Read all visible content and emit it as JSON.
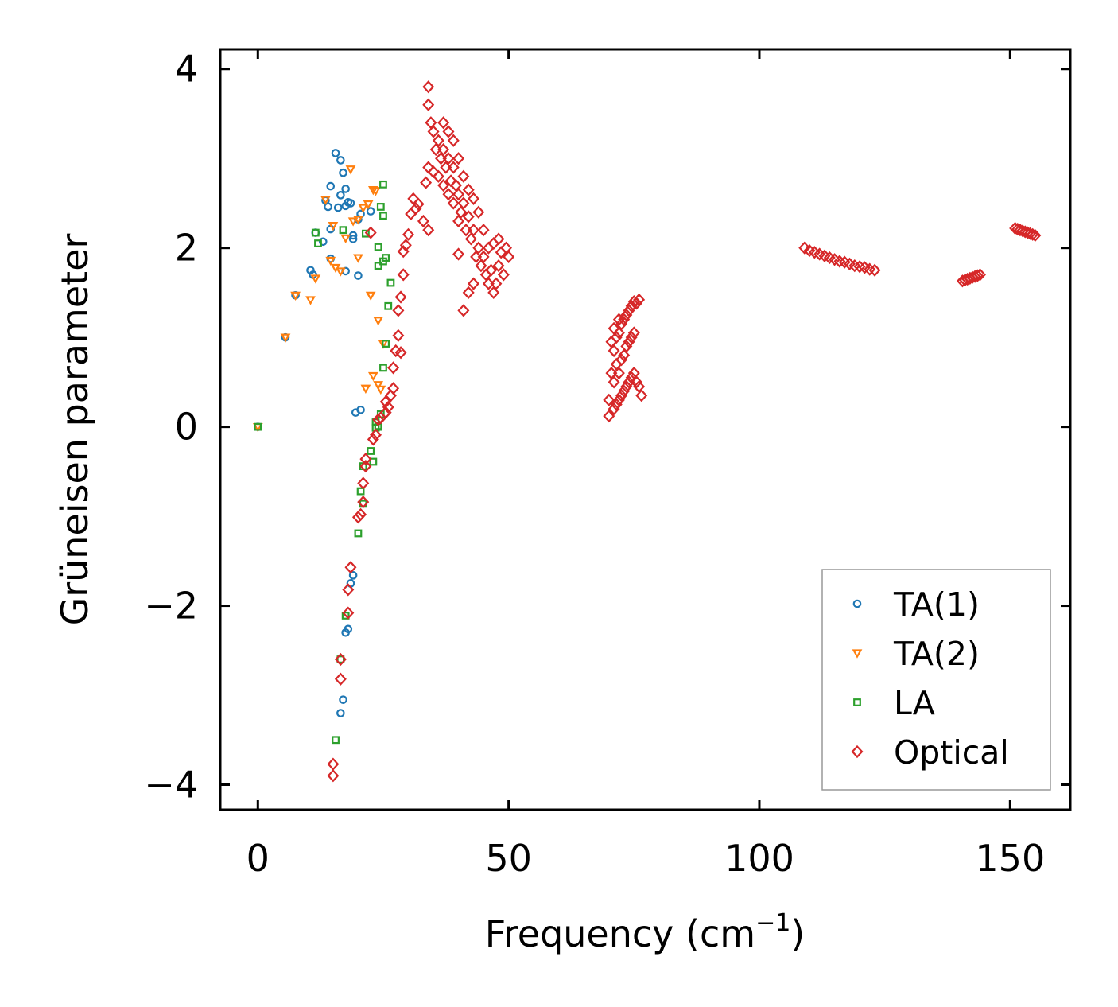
{
  "chart_data": {
    "type": "scatter",
    "title": "",
    "xlabel": "Frequency (cm",
    "xlabel_sup": "−1",
    "xlabel_suffix": ")",
    "ylabel": "Grüneisen parameter",
    "xlim": [
      -7.5,
      162
    ],
    "ylim": [
      -4.28,
      4.22
    ],
    "xticks": [
      0,
      50,
      100,
      150
    ],
    "xtick_labels": [
      "0",
      "50",
      "100",
      "150"
    ],
    "yticks": [
      -4,
      -2,
      0,
      2,
      4
    ],
    "ytick_labels": [
      "−4",
      "−2",
      "0",
      "2",
      "4"
    ],
    "grid": false,
    "legend_position": "bottom-right",
    "series": [
      {
        "name": "TA(1)",
        "marker": "circle",
        "color": "#1f77b4",
        "points": [
          [
            0,
            0
          ],
          [
            5.5,
            1.0
          ],
          [
            7.5,
            1.47
          ],
          [
            10.5,
            1.75
          ],
          [
            11,
            1.7
          ],
          [
            11.5,
            2.17
          ],
          [
            13,
            2.07
          ],
          [
            13.5,
            2.53
          ],
          [
            14,
            2.46
          ],
          [
            14.5,
            1.88
          ],
          [
            14.5,
            2.69
          ],
          [
            14.5,
            2.21
          ],
          [
            15.5,
            3.06
          ],
          [
            16,
            2.45
          ],
          [
            16.5,
            2.98
          ],
          [
            16.5,
            2.59
          ],
          [
            17,
            2.84
          ],
          [
            17.5,
            1.74
          ],
          [
            17.5,
            2.47
          ],
          [
            17.5,
            2.66
          ],
          [
            18,
            2.51
          ],
          [
            18.5,
            2.5
          ],
          [
            19,
            2.14
          ],
          [
            19,
            2.1
          ],
          [
            16.5,
            -3.2
          ],
          [
            17,
            -3.05
          ],
          [
            17.5,
            -2.3
          ],
          [
            18,
            -2.26
          ],
          [
            18.5,
            -1.75
          ],
          [
            19,
            -1.66
          ],
          [
            19.5,
            0.16
          ],
          [
            20.5,
            0.19
          ],
          [
            20,
            1.69
          ],
          [
            20,
            2.32
          ],
          [
            20.5,
            2.38
          ],
          [
            22.5,
            2.41
          ]
        ]
      },
      {
        "name": "TA(2)",
        "marker": "triangle",
        "color": "#ff7f0e",
        "points": [
          [
            0,
            0
          ],
          [
            5.5,
            1.0
          ],
          [
            7.5,
            1.47
          ],
          [
            10.5,
            1.42
          ],
          [
            11.5,
            1.66
          ],
          [
            13.5,
            2.54
          ],
          [
            14.5,
            1.86
          ],
          [
            15,
            2.25
          ],
          [
            15.5,
            1.78
          ],
          [
            16.5,
            1.74
          ],
          [
            17.5,
            2.11
          ],
          [
            18.5,
            2.88
          ],
          [
            19,
            2.3
          ],
          [
            20,
            1.89
          ],
          [
            21,
            2.45
          ],
          [
            21.5,
            0.43
          ],
          [
            22,
            2.49
          ],
          [
            22.5,
            1.47
          ],
          [
            23,
            0.57
          ],
          [
            23,
            2.65
          ],
          [
            23.5,
            2.64
          ],
          [
            24,
            1.19
          ],
          [
            24,
            0.47
          ],
          [
            24.5,
            0.42
          ],
          [
            25,
            0.93
          ],
          [
            20,
            2.32
          ]
        ]
      },
      {
        "name": "LA",
        "marker": "square",
        "color": "#2ca02c",
        "points": [
          [
            0,
            0
          ],
          [
            11.5,
            2.17
          ],
          [
            12,
            2.05
          ],
          [
            15.5,
            -3.5
          ],
          [
            16.5,
            -2.6
          ],
          [
            17,
            2.2
          ],
          [
            17.5,
            -2.11
          ],
          [
            20,
            -1.19
          ],
          [
            20.5,
            -0.72
          ],
          [
            21,
            -0.86
          ],
          [
            21,
            -0.44
          ],
          [
            21.5,
            2.16
          ],
          [
            22.5,
            -0.27
          ],
          [
            23,
            -0.39
          ],
          [
            23.5,
            -0.01
          ],
          [
            23.5,
            0.05
          ],
          [
            24,
            0.0
          ],
          [
            24,
            0.01
          ],
          [
            24,
            1.8
          ],
          [
            24,
            2.01
          ],
          [
            24.5,
            0.14
          ],
          [
            24.5,
            2.46
          ],
          [
            25,
            2.71
          ],
          [
            25,
            0.66
          ],
          [
            25,
            2.36
          ],
          [
            25.5,
            0.93
          ],
          [
            25.5,
            1.89
          ],
          [
            26,
            1.35
          ],
          [
            26.5,
            1.61
          ],
          [
            25,
            1.85
          ]
        ]
      },
      {
        "name": "Optical",
        "marker": "diamond",
        "color": "#d62728",
        "points": [
          [
            15,
            -3.9
          ],
          [
            15,
            -3.77
          ],
          [
            16.5,
            -2.82
          ],
          [
            16.5,
            -2.6
          ],
          [
            18,
            -2.08
          ],
          [
            18,
            -1.82
          ],
          [
            18.5,
            -1.57
          ],
          [
            20,
            -1.01
          ],
          [
            20.5,
            -0.98
          ],
          [
            21,
            -0.84
          ],
          [
            21,
            -0.63
          ],
          [
            21.5,
            -0.44
          ],
          [
            21.5,
            -0.36
          ],
          [
            22.5,
            2.17
          ],
          [
            23,
            -0.14
          ],
          [
            23.5,
            -0.09
          ],
          [
            24,
            0.08
          ],
          [
            24.5,
            0.1
          ],
          [
            25.5,
            0.16
          ],
          [
            25.5,
            0.28
          ],
          [
            26,
            0.22
          ],
          [
            26.5,
            0.35
          ],
          [
            27,
            0.43
          ],
          [
            27,
            0.66
          ],
          [
            27.5,
            0.85
          ],
          [
            28,
            1.02
          ],
          [
            28.5,
            0.83
          ],
          [
            28,
            1.3
          ],
          [
            28.5,
            1.45
          ],
          [
            29,
            1.7
          ],
          [
            29,
            1.96
          ],
          [
            29.5,
            2.03
          ],
          [
            30,
            2.15
          ],
          [
            30.5,
            2.38
          ],
          [
            31,
            2.55
          ],
          [
            31.5,
            2.44
          ],
          [
            32,
            2.49
          ],
          [
            33,
            2.3
          ],
          [
            34,
            2.2
          ],
          [
            33.5,
            2.73
          ],
          [
            34,
            3.8
          ],
          [
            34,
            3.6
          ],
          [
            34.5,
            3.4
          ],
          [
            35,
            3.3
          ],
          [
            35.5,
            3.1
          ],
          [
            34,
            2.9
          ],
          [
            35,
            2.85
          ],
          [
            36,
            2.8
          ],
          [
            36,
            3.2
          ],
          [
            36.5,
            3.0
          ],
          [
            37,
            3.4
          ],
          [
            37,
            3.1
          ],
          [
            37.5,
            2.9
          ],
          [
            37,
            2.7
          ],
          [
            38,
            3.3
          ],
          [
            38,
            3.0
          ],
          [
            38.5,
            2.75
          ],
          [
            38,
            2.6
          ],
          [
            39,
            3.2
          ],
          [
            39,
            2.9
          ],
          [
            39.5,
            2.7
          ],
          [
            39,
            2.5
          ],
          [
            40,
            3.0
          ],
          [
            40,
            2.6
          ],
          [
            40.5,
            2.4
          ],
          [
            40,
            2.3
          ],
          [
            41,
            2.8
          ],
          [
            41,
            2.5
          ],
          [
            41.5,
            2.2
          ],
          [
            42,
            2.65
          ],
          [
            42,
            2.35
          ],
          [
            42.5,
            2.1
          ],
          [
            43,
            2.55
          ],
          [
            43,
            2.2
          ],
          [
            43.5,
            1.9
          ],
          [
            44,
            2.4
          ],
          [
            44,
            2.0
          ],
          [
            44.5,
            1.8
          ],
          [
            45,
            2.2
          ],
          [
            45,
            1.9
          ],
          [
            45.5,
            1.7
          ],
          [
            46,
            2.0
          ],
          [
            46,
            1.6
          ],
          [
            46.5,
            1.75
          ],
          [
            47,
            2.05
          ],
          [
            47,
            1.5
          ],
          [
            47.5,
            1.6
          ],
          [
            48,
            2.1
          ],
          [
            48,
            1.8
          ],
          [
            48.5,
            1.95
          ],
          [
            49,
            1.7
          ],
          [
            49.5,
            2.0
          ],
          [
            50,
            1.9
          ],
          [
            43,
            1.6
          ],
          [
            42,
            1.5
          ],
          [
            41,
            1.3
          ],
          [
            40,
            1.93
          ],
          [
            70,
            0.12
          ],
          [
            70,
            0.3
          ],
          [
            70.5,
            0.6
          ],
          [
            70.5,
            0.95
          ],
          [
            71,
            0.2
          ],
          [
            71,
            0.5
          ],
          [
            71,
            0.85
          ],
          [
            71,
            1.1
          ],
          [
            71.5,
            0.25
          ],
          [
            71.5,
            0.7
          ],
          [
            71.5,
            1.0
          ],
          [
            72,
            0.3
          ],
          [
            72,
            0.6
          ],
          [
            72,
            1.05
          ],
          [
            72,
            1.2
          ],
          [
            72.5,
            0.35
          ],
          [
            72.5,
            0.75
          ],
          [
            72.5,
            1.15
          ],
          [
            73,
            0.4
          ],
          [
            73,
            0.8
          ],
          [
            73,
            1.2
          ],
          [
            73.5,
            0.45
          ],
          [
            73.5,
            0.9
          ],
          [
            73.5,
            1.25
          ],
          [
            74,
            0.5
          ],
          [
            74,
            0.95
          ],
          [
            74,
            1.3
          ],
          [
            74.5,
            0.55
          ],
          [
            74.5,
            1.0
          ],
          [
            74.5,
            1.35
          ],
          [
            75,
            0.6
          ],
          [
            75,
            1.05
          ],
          [
            75,
            1.4
          ],
          [
            75.5,
            0.5
          ],
          [
            75.5,
            1.38
          ],
          [
            76,
            0.45
          ],
          [
            76,
            1.42
          ],
          [
            76.5,
            0.35
          ],
          [
            109,
            2.0
          ],
          [
            110,
            1.97
          ],
          [
            111,
            1.95
          ],
          [
            112,
            1.93
          ],
          [
            113,
            1.91
          ],
          [
            114,
            1.89
          ],
          [
            115,
            1.87
          ],
          [
            116,
            1.85
          ],
          [
            117,
            1.84
          ],
          [
            118,
            1.82
          ],
          [
            119,
            1.8
          ],
          [
            120,
            1.79
          ],
          [
            121,
            1.78
          ],
          [
            122,
            1.76
          ],
          [
            123,
            1.75
          ],
          [
            140.5,
            1.63
          ],
          [
            141,
            1.64
          ],
          [
            141.5,
            1.65
          ],
          [
            142,
            1.66
          ],
          [
            142.5,
            1.67
          ],
          [
            143,
            1.68
          ],
          [
            143.5,
            1.69
          ],
          [
            144,
            1.7
          ],
          [
            151,
            2.22
          ],
          [
            151.5,
            2.21
          ],
          [
            152,
            2.2
          ],
          [
            152.5,
            2.19
          ],
          [
            153,
            2.18
          ],
          [
            153.5,
            2.17
          ],
          [
            154,
            2.16
          ],
          [
            154.5,
            2.15
          ],
          [
            155,
            2.14
          ]
        ]
      }
    ]
  }
}
